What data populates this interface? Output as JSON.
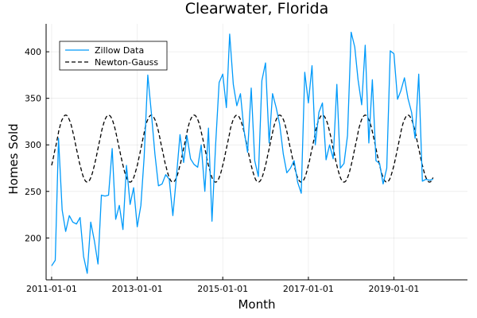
{
  "chart_data": {
    "type": "line",
    "title": "Clearwater, Florida",
    "xlabel": "Month",
    "ylabel": "Homes Sold",
    "xlim": [
      "2010-11-15",
      "2020-09-20"
    ],
    "ylim": [
      155,
      430
    ],
    "x_ticks": [
      "2011-01-01",
      "2013-01-01",
      "2015-01-01",
      "2017-01-01",
      "2019-01-01"
    ],
    "y_ticks": [
      200,
      250,
      300,
      350,
      400
    ],
    "grid": true,
    "legend_position": "top-left",
    "series": [
      {
        "name": "Zillow Data",
        "color": "#009AFA",
        "style": "solid",
        "x": [
          "2011-01-01",
          "2011-02-01",
          "2011-03-01",
          "2011-04-01",
          "2011-05-01",
          "2011-06-01",
          "2011-07-01",
          "2011-08-01",
          "2011-09-01",
          "2011-10-01",
          "2011-11-01",
          "2011-12-01",
          "2012-01-01",
          "2012-02-01",
          "2012-03-01",
          "2012-04-01",
          "2012-05-01",
          "2012-06-01",
          "2012-07-01",
          "2012-08-01",
          "2012-09-01",
          "2012-10-01",
          "2012-11-01",
          "2012-12-01",
          "2013-01-01",
          "2013-02-01",
          "2013-03-01",
          "2013-04-01",
          "2013-05-01",
          "2013-06-01",
          "2013-07-01",
          "2013-08-01",
          "2013-09-01",
          "2013-10-01",
          "2013-11-01",
          "2013-12-01",
          "2014-01-01",
          "2014-02-01",
          "2014-03-01",
          "2014-04-01",
          "2014-05-01",
          "2014-06-01",
          "2014-07-01",
          "2014-08-01",
          "2014-09-01",
          "2014-10-01",
          "2014-11-01",
          "2014-12-01",
          "2015-01-01",
          "2015-02-01",
          "2015-03-01",
          "2015-04-01",
          "2015-05-01",
          "2015-06-01",
          "2015-07-01",
          "2015-08-01",
          "2015-09-01",
          "2015-10-01",
          "2015-11-01",
          "2015-12-01",
          "2016-01-01",
          "2016-02-01",
          "2016-03-01",
          "2016-04-01",
          "2016-05-01",
          "2016-06-01",
          "2016-07-01",
          "2016-08-01",
          "2016-09-01",
          "2016-10-01",
          "2016-11-01",
          "2016-12-01",
          "2017-01-01",
          "2017-02-01",
          "2017-03-01",
          "2017-04-01",
          "2017-05-01",
          "2017-06-01",
          "2017-07-01",
          "2017-08-01",
          "2017-09-01",
          "2017-10-01",
          "2017-11-01",
          "2017-12-01",
          "2018-01-01",
          "2018-02-01",
          "2018-03-01",
          "2018-04-01",
          "2018-05-01",
          "2018-06-01",
          "2018-07-01",
          "2018-08-01",
          "2018-09-01",
          "2018-10-01",
          "2018-11-01",
          "2018-12-01",
          "2019-01-01",
          "2019-02-01",
          "2019-03-01",
          "2019-04-01",
          "2019-05-01",
          "2019-06-01",
          "2019-07-01",
          "2019-08-01",
          "2019-09-01",
          "2019-10-01",
          "2019-11-01",
          "2019-12-01"
        ],
        "y": [
          170,
          176,
          307,
          230,
          207,
          224,
          217,
          215,
          222,
          180,
          162,
          217,
          197,
          172,
          246,
          245,
          246,
          296,
          220,
          235,
          209,
          278,
          236,
          254,
          212,
          235,
          287,
          375,
          335,
          290,
          256,
          258,
          268,
          263,
          224,
          265,
          311,
          281,
          310,
          285,
          279,
          276,
          300,
          250,
          318,
          218,
          300,
          367,
          376,
          340,
          419,
          365,
          342,
          355,
          316,
          292,
          361,
          283,
          266,
          369,
          388,
          302,
          355,
          340,
          322,
          290,
          270,
          275,
          283,
          260,
          248,
          378,
          345,
          385,
          300,
          335,
          345,
          284,
          300,
          285,
          365,
          275,
          280,
          310,
          421,
          405,
          370,
          343,
          407,
          302,
          370,
          283,
          280,
          258,
          275,
          401,
          398,
          349,
          358,
          372,
          350,
          335,
          307,
          376,
          261,
          263,
          262,
          263
        ]
      },
      {
        "name": "Newton-Gauss",
        "color": "#000000",
        "style": "dashed",
        "fit_model": "sinusoid",
        "mean": 296,
        "amplitude": 36,
        "period_months": 12,
        "peak_month": 4
      }
    ]
  }
}
